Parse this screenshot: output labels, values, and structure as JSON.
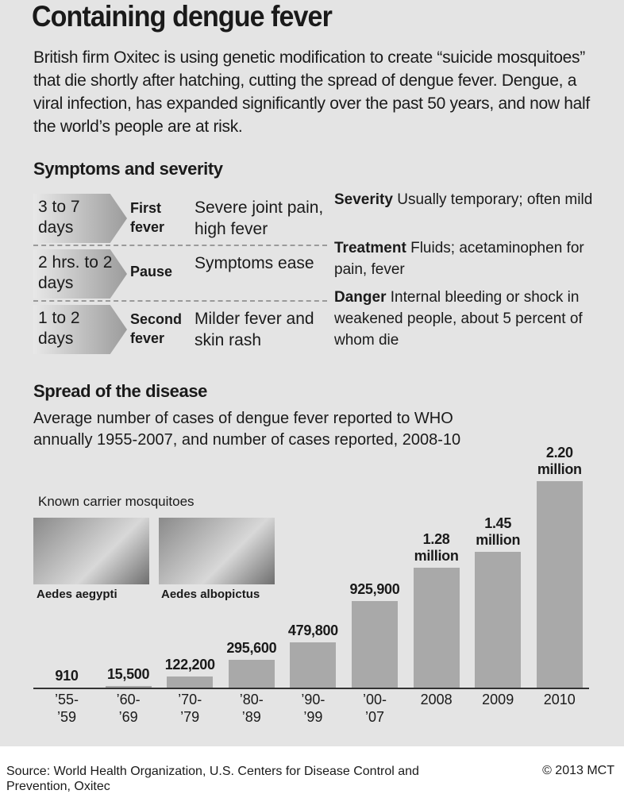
{
  "header": {
    "title": "Containing dengue fever",
    "intro": "British firm Oxitec is using genetic modification to create “suicide mosquitoes” that die shortly after hatching, cutting the spread of dengue fever. Dengue, a viral infection, has expanded significantly over the past 50 years, and now half the world’s people are at risk."
  },
  "symptoms": {
    "heading": "Symptoms and severity",
    "rows": [
      {
        "duration": "3 to 7 days",
        "stage": "First fever",
        "description": "Severe joint pain, high fever"
      },
      {
        "duration": "2 hrs. to 2 days",
        "stage": "Pause",
        "description": "Symptoms ease"
      },
      {
        "duration": "1 to 2 days",
        "stage": "Second fever",
        "description": "Milder fever and skin rash"
      }
    ],
    "notes": [
      {
        "label": "Severity",
        "text": "Usually temporary; often mild"
      },
      {
        "label": "Treatment",
        "text": "Fluids; acetaminophen for pain, fever"
      },
      {
        "label": "Danger",
        "text": "Internal bleeding or shock in weakened people, about 5 percent of whom die"
      }
    ]
  },
  "mosquitoes": {
    "heading": "Known carrier mosquitoes",
    "captions": [
      "Aedes aegypti",
      "Aedes albopictus"
    ]
  },
  "chart_data": {
    "type": "bar",
    "title": "Spread of the disease",
    "subtitle": "Average number of cases of dengue fever reported to WHO annually 1955-2007, and number of cases reported, 2008-10",
    "categories": [
      "’55- ’59",
      "’60- ’69",
      "’70- ’79",
      "’80- ’89",
      "’90- ’99",
      "’00- ’07",
      "2008",
      "2009",
      "2010"
    ],
    "values": [
      910,
      15500,
      122200,
      295600,
      479800,
      925900,
      1280000,
      1450000,
      2200000
    ],
    "value_labels": [
      "910",
      "15,500",
      "122,200",
      "295,600",
      "479,800",
      "925,900",
      "1.28 million",
      "1.45 million",
      "2.20 million"
    ],
    "color": "#a9a9a9"
  },
  "footer": {
    "source": "Source: World Health Organization, U.S. Centers for Disease Control and Prevention, Oxitec",
    "credit": "© 2013 MCT"
  }
}
